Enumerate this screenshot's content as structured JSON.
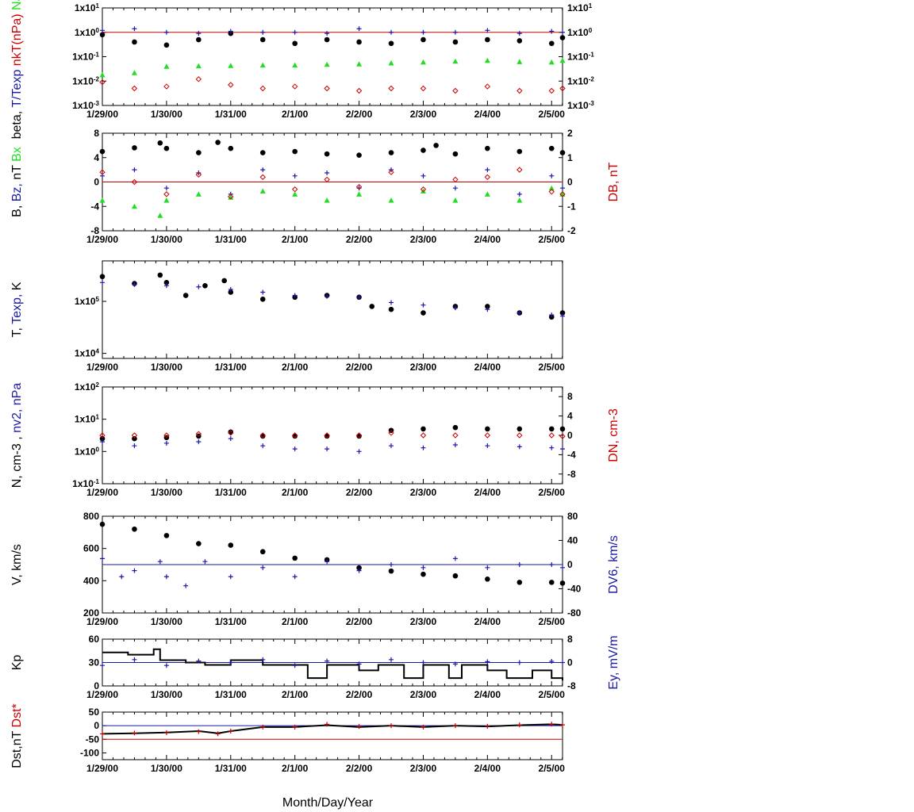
{
  "xlabel": "Month/Day/Year",
  "x_ticks": [
    "1/29/00",
    "1/30/00",
    "1/31/00",
    "2/1/00",
    "2/2/00",
    "2/3/00",
    "2/4/00",
    "2/5/00"
  ],
  "colors": {
    "black": "#000000",
    "blue": "#1a1aa6",
    "red": "#cc0000",
    "green": "#22dd22"
  },
  "chart_data": [
    {
      "type": "scatter",
      "panel": "ratios",
      "ylabel_parts": [
        {
          "text": "beta,",
          "color": "black"
        },
        {
          "text": "T/Texp",
          "color": "blue"
        },
        {
          "text": "nkT(nPa)",
          "color": "red"
        },
        {
          "text": "Na/Np",
          "color": "green"
        }
      ],
      "y_scale": "log",
      "ylim": [
        0.001,
        10
      ],
      "left_ticks": [
        "1x10-3",
        "1x10-2",
        "1x10-1",
        "1x100",
        "1x101"
      ],
      "right_ticks": [
        "1x10-3",
        "1x10-2",
        "1x10-1",
        "1x100",
        "1x101"
      ],
      "ref_lines": [
        {
          "y": 1,
          "color": "red",
          "axis": "left"
        }
      ],
      "series": [
        {
          "name": "beta",
          "marker": "dot",
          "color": "black",
          "axis": "left",
          "x": [
            0,
            0.5,
            1,
            1.5,
            2,
            2.5,
            3,
            3.5,
            4,
            4.5,
            5,
            5.5,
            6,
            6.5,
            7,
            7.17
          ],
          "y": [
            0.8,
            0.4,
            0.3,
            0.5,
            0.9,
            0.5,
            0.35,
            0.5,
            0.4,
            0.35,
            0.5,
            0.4,
            0.5,
            0.45,
            0.35,
            0.6
          ]
        },
        {
          "name": "T/Texp",
          "marker": "plus",
          "color": "blue",
          "axis": "left",
          "x": [
            0,
            0.5,
            1,
            1.5,
            2,
            2.5,
            3,
            3.5,
            4,
            4.5,
            5,
            5.5,
            6,
            6.5,
            7,
            7.17
          ],
          "y": [
            1.2,
            1.4,
            1.0,
            0.9,
            1.1,
            1.0,
            1.0,
            0.9,
            1.4,
            1.0,
            1.0,
            1.0,
            1.2,
            0.9,
            1.1,
            1.0
          ]
        },
        {
          "name": "nkT",
          "marker": "diamond",
          "color": "red",
          "axis": "left",
          "x": [
            0,
            0.5,
            1,
            1.5,
            2,
            2.5,
            3,
            3.5,
            4,
            4.5,
            5,
            5.5,
            6,
            6.5,
            7,
            7.17
          ],
          "y": [
            0.009,
            0.005,
            0.006,
            0.012,
            0.007,
            0.005,
            0.006,
            0.005,
            0.004,
            0.005,
            0.005,
            0.004,
            0.006,
            0.004,
            0.004,
            0.005
          ]
        },
        {
          "name": "Na/Np",
          "marker": "triangle",
          "color": "green",
          "axis": "left",
          "x": [
            0,
            0.5,
            1,
            1.5,
            2,
            2.5,
            3,
            3.5,
            4,
            4.5,
            5,
            5.5,
            6,
            6.5,
            7,
            7.17
          ],
          "y": [
            0.018,
            0.022,
            0.04,
            0.042,
            0.043,
            0.045,
            0.045,
            0.048,
            0.05,
            0.055,
            0.06,
            0.065,
            0.07,
            0.062,
            0.06,
            0.07
          ]
        }
      ]
    },
    {
      "type": "scatter",
      "panel": "magnetic-field",
      "ylabel_parts": [
        {
          "text": "B,",
          "color": "black"
        },
        {
          "text": "Bz,",
          "color": "blue"
        },
        {
          "text": "nT",
          "color": "black"
        },
        {
          "text": "Bx",
          "color": "green"
        }
      ],
      "ylabel_right_parts": [
        {
          "text": "DB, nT",
          "color": "red"
        }
      ],
      "ylim": [
        -8,
        8
      ],
      "y2lim": [
        -2,
        2
      ],
      "left_ticks": [
        "-8",
        "-4",
        "0",
        "4",
        "8"
      ],
      "right_ticks": [
        "-2",
        "-1",
        "0",
        "1",
        "2"
      ],
      "ref_lines": [
        {
          "y": 0,
          "color": "red",
          "axis": "left"
        }
      ],
      "series": [
        {
          "name": "B",
          "marker": "dot",
          "color": "black",
          "axis": "left",
          "x": [
            0,
            0.5,
            0.9,
            1,
            1.5,
            1.8,
            2,
            2.5,
            3,
            3.5,
            4,
            4.5,
            5,
            5.2,
            5.5,
            6,
            6.5,
            7,
            7.17
          ],
          "y": [
            5,
            5.6,
            6.4,
            5.5,
            4.8,
            6.5,
            5.5,
            4.8,
            5.0,
            4.6,
            4.4,
            4.8,
            5.2,
            6.0,
            4.6,
            5.5,
            5.0,
            5.5,
            4.8
          ]
        },
        {
          "name": "Bz",
          "marker": "plus",
          "color": "blue",
          "axis": "left",
          "x": [
            0,
            0.5,
            1,
            1.5,
            2,
            2.5,
            3,
            3.5,
            4,
            4.5,
            5,
            5.5,
            6,
            6.5,
            7,
            7.17
          ],
          "y": [
            1,
            2,
            -1,
            1.5,
            -2,
            2,
            1,
            1.5,
            -1,
            2,
            1,
            -1,
            2,
            -2,
            1,
            -1
          ]
        },
        {
          "name": "Bx",
          "marker": "triangle",
          "color": "green",
          "axis": "left",
          "x": [
            0,
            0.5,
            0.9,
            1,
            1.5,
            2,
            2.5,
            3,
            3.5,
            4,
            4.5,
            5,
            5.5,
            6,
            6.5,
            7,
            7.17
          ],
          "y": [
            -3,
            -4,
            -5.5,
            -3,
            -2,
            -2.5,
            -1.5,
            -2,
            -3,
            -2,
            -3,
            -1.5,
            -3,
            -2,
            -3,
            -1,
            -2
          ]
        },
        {
          "name": "DB",
          "marker": "diamond",
          "color": "red",
          "axis": "right",
          "x": [
            0,
            0.5,
            1,
            1.5,
            2,
            2.5,
            3,
            3.5,
            4,
            4.5,
            5,
            5.5,
            6,
            6.5,
            7,
            7.17
          ],
          "y": [
            0.4,
            0,
            -0.5,
            0.3,
            -0.6,
            0.2,
            -0.3,
            0.1,
            -0.2,
            0.4,
            -0.3,
            0.1,
            0.2,
            0.5,
            -0.4,
            -0.5
          ]
        }
      ]
    },
    {
      "type": "scatter",
      "panel": "temperature",
      "ylabel_parts": [
        {
          "text": "T,",
          "color": "black"
        },
        {
          "text": "Texp,",
          "color": "blue"
        },
        {
          "text": "K",
          "color": "black"
        }
      ],
      "y_scale": "log",
      "ylim": [
        8000,
        600000
      ],
      "left_ticks": [
        "1x104",
        "1x105"
      ],
      "series": [
        {
          "name": "T",
          "marker": "dot",
          "color": "black",
          "axis": "left",
          "x": [
            0,
            0.5,
            0.9,
            1,
            1.3,
            1.6,
            1.9,
            2,
            2.5,
            3,
            3.5,
            4,
            4.2,
            4.5,
            5,
            5.5,
            6,
            6.5,
            7,
            7.17
          ],
          "y": [
            300000,
            220000,
            320000,
            230000,
            130000,
            200000,
            250000,
            150000,
            110000,
            120000,
            130000,
            120000,
            80000,
            70000,
            60000,
            80000,
            80000,
            60000,
            50000,
            60000
          ]
        },
        {
          "name": "Texp",
          "marker": "plus",
          "color": "blue",
          "axis": "left",
          "x": [
            0,
            0.5,
            1,
            1.5,
            2,
            2.5,
            3,
            3.5,
            4,
            4.5,
            5,
            5.5,
            6,
            6.5,
            7,
            7.17
          ],
          "y": [
            230000,
            210000,
            200000,
            190000,
            170000,
            150000,
            130000,
            125000,
            120000,
            95000,
            85000,
            75000,
            70000,
            60000,
            55000,
            52000
          ]
        }
      ]
    },
    {
      "type": "scatter",
      "panel": "density",
      "ylabel_parts": [
        {
          "text": "N, cm-3 ,",
          "color": "black"
        },
        {
          "text": "nv2, nPa",
          "color": "blue"
        }
      ],
      "ylabel_right_parts": [
        {
          "text": "DN, cm-3",
          "color": "red"
        }
      ],
      "y_scale": "log",
      "ylim": [
        0.1,
        100
      ],
      "y2lim": [
        -10,
        10
      ],
      "left_ticks": [
        "1x10-1",
        "1x100",
        "1x101",
        "1x102"
      ],
      "right_ticks": [
        "-8",
        "-4",
        "0",
        "4",
        "8"
      ],
      "series": [
        {
          "name": "N",
          "marker": "dot",
          "color": "black",
          "axis": "left",
          "x": [
            0,
            0.5,
            1,
            1.5,
            2,
            2.5,
            3,
            3.5,
            4,
            4.5,
            5,
            5.5,
            6,
            6.5,
            7,
            7.17
          ],
          "y": [
            2.5,
            2.5,
            2.7,
            3.0,
            4.0,
            3.0,
            3.0,
            3.0,
            3.0,
            4.5,
            5.0,
            5.5,
            5.0,
            5.0,
            5.0,
            5.0
          ]
        },
        {
          "name": "nv2",
          "marker": "plus",
          "color": "blue",
          "axis": "left",
          "x": [
            0,
            0.5,
            1,
            1.5,
            2,
            2.5,
            3,
            3.5,
            4,
            4.5,
            5,
            5.5,
            6,
            6.5,
            7,
            7.17
          ],
          "y": [
            2.0,
            1.5,
            1.8,
            2.0,
            2.5,
            1.5,
            1.2,
            1.2,
            1.0,
            1.5,
            1.3,
            1.6,
            1.5,
            1.4,
            1.3,
            1.2
          ]
        },
        {
          "name": "DN",
          "marker": "diamond",
          "color": "red",
          "axis": "right",
          "x": [
            0,
            0.5,
            1,
            1.5,
            2,
            2.5,
            3,
            3.5,
            4,
            4.5,
            5,
            5.5,
            6,
            6.5,
            7,
            7.17
          ],
          "y": [
            0,
            0,
            0,
            0.3,
            0.5,
            0,
            0,
            0,
            0,
            0.5,
            0,
            0,
            0,
            0,
            0,
            -0.2
          ]
        }
      ]
    },
    {
      "type": "scatter",
      "panel": "velocity",
      "ylabel_parts": [
        {
          "text": "V, km/s",
          "color": "black"
        }
      ],
      "ylabel_right_parts": [
        {
          "text": "DV6, km/s",
          "color": "blue"
        }
      ],
      "ylim": [
        200,
        800
      ],
      "y2lim": [
        -80,
        80
      ],
      "left_ticks": [
        "200",
        "400",
        "600",
        "800"
      ],
      "right_ticks": [
        "-80",
        "-40",
        "0",
        "40",
        "80"
      ],
      "ref_lines": [
        {
          "y": 0,
          "color": "blue",
          "axis": "right"
        }
      ],
      "series": [
        {
          "name": "V",
          "marker": "dot",
          "color": "black",
          "axis": "left",
          "x": [
            0,
            0.5,
            1,
            1.5,
            2,
            2.5,
            3,
            3.5,
            4,
            4.5,
            5,
            5.5,
            6,
            6.5,
            7,
            7.17
          ],
          "y": [
            750,
            720,
            680,
            630,
            620,
            580,
            540,
            530,
            480,
            460,
            440,
            430,
            410,
            390,
            390,
            385
          ]
        },
        {
          "name": "DV6",
          "marker": "plus",
          "color": "blue",
          "axis": "right",
          "x": [
            0,
            0.3,
            0.5,
            0.9,
            1,
            1.3,
            1.6,
            2,
            2.5,
            3,
            3.5,
            4,
            4.5,
            5,
            5.5,
            6,
            6.5,
            7,
            7.17
          ],
          "y": [
            10,
            -20,
            -10,
            5,
            -20,
            -35,
            5,
            -20,
            -5,
            -20,
            5,
            -10,
            0,
            -5,
            10,
            -5,
            0,
            0,
            -5
          ]
        }
      ]
    },
    {
      "type": "line",
      "panel": "kp-ey",
      "ylabel_parts": [
        {
          "text": "Kp",
          "color": "black"
        }
      ],
      "ylabel_right_parts": [
        {
          "text": "Ey,  mV/m",
          "color": "blue"
        }
      ],
      "ylim": [
        0,
        60
      ],
      "y2lim": [
        -8,
        8
      ],
      "left_ticks": [
        "0",
        "30",
        "60"
      ],
      "right_ticks": [
        "-8",
        "0",
        "8"
      ],
      "ref_lines": [
        {
          "y": 30,
          "color": "blue",
          "axis": "left"
        }
      ],
      "series": [
        {
          "name": "Kp",
          "marker": "step",
          "color": "black",
          "axis": "left",
          "x": [
            0,
            0.4,
            0.8,
            0.9,
            1.3,
            1.6,
            2,
            2.5,
            3,
            3.2,
            3.5,
            4,
            4.3,
            4.7,
            5,
            5.4,
            5.6,
            6,
            6.3,
            6.7,
            7,
            7.17
          ],
          "y": [
            43,
            40,
            47,
            33,
            30,
            27,
            33,
            27,
            27,
            10,
            27,
            20,
            27,
            10,
            27,
            10,
            27,
            20,
            10,
            20,
            10,
            7
          ]
        },
        {
          "name": "Ey",
          "marker": "plus",
          "color": "blue",
          "axis": "right",
          "x": [
            0,
            0.5,
            1,
            1.5,
            2,
            2.5,
            3,
            3.5,
            4,
            4.5,
            5,
            5.5,
            6,
            6.5,
            7,
            7.17
          ],
          "y": [
            -1,
            1,
            -1,
            0.5,
            0,
            1,
            -1,
            0.5,
            -0.5,
            1,
            0,
            -0.5,
            0.3,
            0,
            0.4,
            0
          ]
        }
      ]
    },
    {
      "type": "line",
      "panel": "dst",
      "ylabel_parts": [
        {
          "text": "Dst,nT",
          "color": "black"
        },
        {
          "text": "Dst*",
          "color": "red"
        }
      ],
      "ylim": [
        -125,
        50
      ],
      "left_ticks": [
        "-100",
        "-50",
        "0",
        "50"
      ],
      "ref_lines": [
        {
          "y": 0,
          "color": "blue",
          "axis": "left"
        },
        {
          "y": -50,
          "color": "red",
          "axis": "left"
        }
      ],
      "series": [
        {
          "name": "Dst",
          "marker": "line",
          "color": "black",
          "axis": "left",
          "x": [
            0,
            0.5,
            1,
            1.5,
            1.8,
            2,
            2.5,
            3,
            3.5,
            4,
            4.5,
            5,
            5.5,
            6,
            6.5,
            7,
            7.17
          ],
          "y": [
            -30,
            -28,
            -25,
            -20,
            -28,
            -20,
            -5,
            -5,
            2,
            -5,
            0,
            -5,
            0,
            -3,
            2,
            5,
            3
          ]
        },
        {
          "name": "Dst*",
          "marker": "plus",
          "color": "red",
          "axis": "left",
          "x": [
            0,
            0.5,
            1,
            1.5,
            1.8,
            2,
            2.5,
            3,
            3.5,
            4,
            4.5,
            5,
            5.5,
            6,
            6.5,
            7,
            7.17
          ],
          "y": [
            -30,
            -27,
            -26,
            -22,
            -30,
            -20,
            -5,
            -5,
            5,
            -3,
            0,
            -5,
            0,
            -2,
            3,
            6,
            3
          ]
        }
      ]
    }
  ]
}
